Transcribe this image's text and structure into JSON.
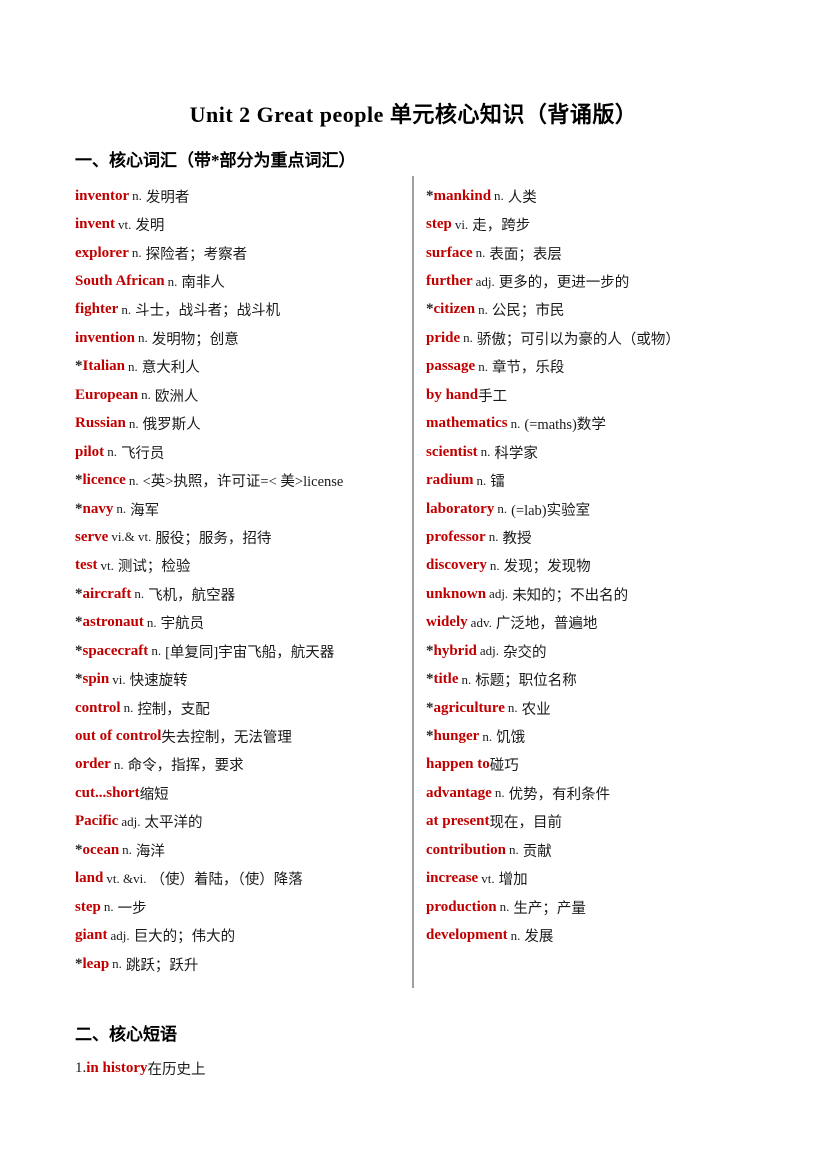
{
  "title": "Unit 2 Great people 单元核心知识（背诵版）",
  "colors": {
    "accent": "#C00000",
    "divider": "#9aa0a6",
    "text": "#1a1a1a"
  },
  "section_vocab": {
    "heading": "一、核心词汇（带*部分为重点词汇）",
    "left": [
      {
        "star": "",
        "word": "inventor",
        "pos": "n.",
        "def": "发明者"
      },
      {
        "star": "",
        "word": "invent",
        "pos": "vt.",
        "def": "发明"
      },
      {
        "star": "",
        "word": "explorer",
        "pos": "n.",
        "def": "探险者；考察者"
      },
      {
        "star": "",
        "word": "South African",
        "pos": "n.",
        "def": "南非人"
      },
      {
        "star": "",
        "word": "fighter",
        "pos": "n.",
        "def": "斗士，战斗者；战斗机"
      },
      {
        "star": "",
        "word": "invention",
        "pos": "n.",
        "def": "发明物；创意"
      },
      {
        "star": "*",
        "word": "Italian",
        "pos": "n.",
        "def": "意大利人"
      },
      {
        "star": "",
        "word": "European",
        "pos": "n.",
        "def": "欧洲人"
      },
      {
        "star": "",
        "word": "Russian",
        "pos": "n.",
        "def": "俄罗斯人"
      },
      {
        "star": "",
        "word": "pilot",
        "pos": "n.",
        "def": "飞行员"
      },
      {
        "star": "*",
        "word": "licence",
        "pos": "n.",
        "def": "<英>执照，许可证=< 美>license"
      },
      {
        "star": "*",
        "word": "navy",
        "pos": "n.",
        "def": "海军"
      },
      {
        "star": "",
        "word": "serve",
        "pos": "vi.& vt.",
        "def": "服役；服务，招待"
      },
      {
        "star": "",
        "word": "test",
        "pos": "vt.",
        "def": "测试；检验"
      },
      {
        "star": "*",
        "word": "aircraft",
        "pos": "n.",
        "def": "飞机，航空器"
      },
      {
        "star": "*",
        "word": "astronaut",
        "pos": "n.",
        "def": "宇航员"
      },
      {
        "star": "*",
        "word": "spacecraft",
        "pos": "n.",
        "def": "[单复同]宇宙飞船，航天器"
      },
      {
        "star": "*",
        "word": "spin",
        "pos": "vi.",
        "def": "快速旋转"
      },
      {
        "star": "",
        "word": "control",
        "pos": "n.",
        "def": "控制，支配"
      },
      {
        "star": "",
        "word": "out of control",
        "pos": "",
        "def": "失去控制，无法管理"
      },
      {
        "star": "",
        "word": "order",
        "pos": "n.",
        "def": "命令，指挥，要求"
      },
      {
        "star": "",
        "word": "cut...short",
        "pos": "",
        "def": "缩短"
      },
      {
        "star": "",
        "word": "Pacific",
        "pos": "adj.",
        "def": "太平洋的"
      },
      {
        "star": "*",
        "word": "ocean",
        "pos": "n.",
        "def": "海洋"
      },
      {
        "star": "",
        "word": "land",
        "pos": "vt. &vi.",
        "def": "（使）着陆，（使）降落"
      },
      {
        "star": "",
        "word": "step",
        "pos": "n.",
        "def": "一步"
      },
      {
        "star": "",
        "word": "giant",
        "pos": "adj.",
        "def": "巨大的；伟大的"
      },
      {
        "star": "*",
        "word": "leap",
        "pos": "n.",
        "def": "跳跃；跃升"
      }
    ],
    "right": [
      {
        "star": "*",
        "word": "mankind",
        "pos": "n.",
        "def": "人类"
      },
      {
        "star": "",
        "word": "step",
        "pos": "vi.",
        "def": "走，跨步"
      },
      {
        "star": "",
        "word": "surface",
        "pos": "n.",
        "def": "表面；表层"
      },
      {
        "star": "",
        "word": "further",
        "pos": "adj.",
        "def": "更多的，更进一步的"
      },
      {
        "star": "*",
        "word": "citizen",
        "pos": "n.",
        "def": "公民；市民"
      },
      {
        "star": "",
        "word": "pride",
        "pos": "n.",
        "def": "骄傲；可引以为豪的人（或物）"
      },
      {
        "star": "",
        "word": "passage",
        "pos": "n.",
        "def": "章节，乐段"
      },
      {
        "star": "",
        "word": "by hand",
        "pos": "",
        "def": "手工"
      },
      {
        "star": "",
        "word": "mathematics",
        "pos": "n.",
        "def": "(=maths)数学"
      },
      {
        "star": "",
        "word": "scientist",
        "pos": "n.",
        "def": "科学家"
      },
      {
        "star": "",
        "word": "radium",
        "pos": "n.",
        "def": "镭"
      },
      {
        "star": "",
        "word": "laboratory",
        "pos": "n.",
        "def": "(=lab)实验室"
      },
      {
        "star": "",
        "word": "professor",
        "pos": "n.",
        "def": "教授"
      },
      {
        "star": "",
        "word": "discovery",
        "pos": "n.",
        "def": "发现；发现物"
      },
      {
        "star": "",
        "word": "unknown",
        "pos": "adj.",
        "def": "未知的；不出名的"
      },
      {
        "star": "",
        "word": "widely",
        "pos": "adv.",
        "def": "广泛地，普遍地"
      },
      {
        "star": "*",
        "word": "hybrid",
        "pos": "adj.",
        "def": "杂交的"
      },
      {
        "star": "*",
        "word": "title",
        "pos": "n.",
        "def": "标题；职位名称"
      },
      {
        "star": "*",
        "word": "agriculture",
        "pos": "n.",
        "def": "农业"
      },
      {
        "star": "*",
        "word": "hunger",
        "pos": "n.",
        "def": "饥饿"
      },
      {
        "star": "",
        "word": "happen to",
        "pos": "",
        "def": "碰巧"
      },
      {
        "star": "",
        "word": "advantage",
        "pos": "n.",
        "def": "优势，有利条件"
      },
      {
        "star": "",
        "word": "at present",
        "pos": "",
        "def": "现在，目前"
      },
      {
        "star": "",
        "word": "contribution",
        "pos": "n.",
        "def": "贡献"
      },
      {
        "star": "",
        "word": "increase",
        "pos": "vt.",
        "def": "增加"
      },
      {
        "star": "",
        "word": "production",
        "pos": "n.",
        "def": "生产；产量"
      },
      {
        "star": "",
        "word": "development",
        "pos": "n.",
        "def": "发展"
      }
    ]
  },
  "section_phrases": {
    "heading": "二、核心短语",
    "items": [
      {
        "num": "1.",
        "phrase": "in history",
        "def": "在历史上"
      }
    ]
  }
}
